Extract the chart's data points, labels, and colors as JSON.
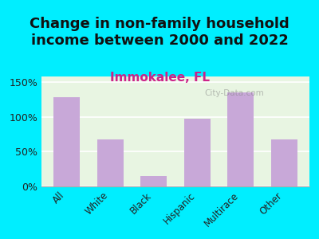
{
  "title": "Change in non-family household\nincome between 2000 and 2022",
  "subtitle": "Immokalee, FL",
  "categories": [
    "All",
    "White",
    "Black",
    "Hispanic",
    "Multirace",
    "Other"
  ],
  "values": [
    128,
    68,
    15,
    97,
    135,
    68
  ],
  "bar_color": "#c8a8d8",
  "background_color": "#00eeff",
  "plot_bg_top": "#e8f5e0",
  "plot_bg_bottom": "#f5fff5",
  "title_fontsize": 13,
  "subtitle_fontsize": 11,
  "subtitle_color": "#cc2288",
  "title_color": "#111111",
  "yticks": [
    0,
    50,
    100,
    150
  ],
  "ylim": [
    0,
    158
  ],
  "ylabel_format": "%",
  "watermark": "City-Data.com"
}
